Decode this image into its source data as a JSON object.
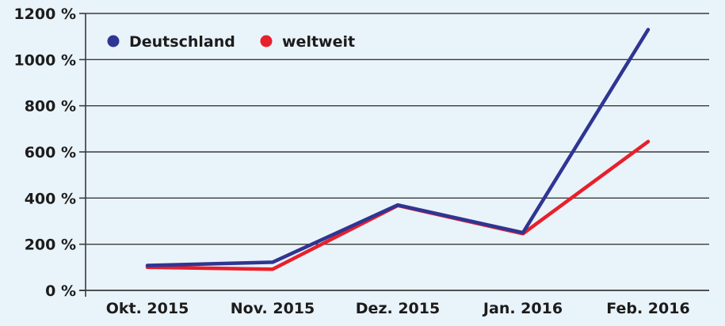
{
  "chart_data": {
    "type": "line",
    "title": "",
    "xlabel": "",
    "ylabel": "",
    "categories": [
      "Okt. 2015",
      "Nov. 2015",
      "Dez. 2015",
      "Jan. 2016",
      "Feb. 2016"
    ],
    "yticks": [
      "0 %",
      "200 %",
      "400 %",
      "600 %",
      "800 %",
      "1000 %",
      "1200 %"
    ],
    "ylim": [
      0,
      1200
    ],
    "grid": true,
    "legend_position": "top-left",
    "series": [
      {
        "name": "Deutschland",
        "color": "#2f3592",
        "values": [
          108,
          122,
          370,
          250,
          1130
        ]
      },
      {
        "name": "weltweit",
        "color": "#e8202a",
        "values": [
          100,
          92,
          368,
          246,
          645
        ]
      }
    ]
  },
  "colors": {
    "background": "#e9f3fa",
    "grid": "#3a3a3a",
    "text": "#1c1c1c"
  }
}
